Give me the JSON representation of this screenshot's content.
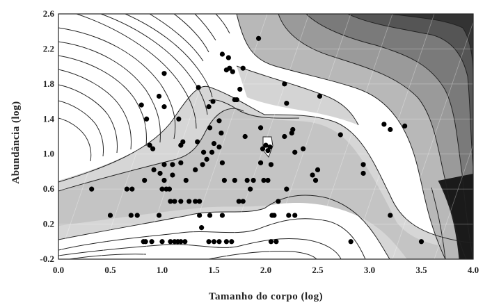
{
  "chart_data": {
    "type": "scatter",
    "title": "",
    "xlabel": "Tamanho do corpo (log)",
    "ylabel": "Abundância (log)",
    "xlim": [
      0.0,
      4.0
    ],
    "ylim": [
      -0.2,
      2.6
    ],
    "x_ticks": [
      "0.0",
      "0.5",
      "1.0",
      "1.5",
      "2.0",
      "2.5",
      "3.0",
      "3.5",
      "4.0"
    ],
    "y_ticks": [
      "-0.2",
      "0.2",
      "0.6",
      "1.0",
      "1.4",
      "1.8",
      "2.2",
      "2.6"
    ],
    "background": "filled contour map of point density (white = low, black = high)",
    "grid": true,
    "points": [
      {
        "x": 0.32,
        "y": 0.6
      },
      {
        "x": 0.5,
        "y": 0.3
      },
      {
        "x": 0.66,
        "y": 0.6
      },
      {
        "x": 0.71,
        "y": 0.6
      },
      {
        "x": 0.7,
        "y": 0.3
      },
      {
        "x": 0.76,
        "y": 0.3
      },
      {
        "x": 0.8,
        "y": 1.56
      },
      {
        "x": 0.85,
        "y": 1.4
      },
      {
        "x": 0.83,
        "y": 0.7
      },
      {
        "x": 0.88,
        "y": 1.1
      },
      {
        "x": 0.91,
        "y": 1.06
      },
      {
        "x": 0.92,
        "y": 0.82
      },
      {
        "x": 0.84,
        "y": 0.0
      },
      {
        "x": 0.9,
        "y": 0.0
      },
      {
        "x": 0.82,
        "y": 0.0
      },
      {
        "x": 0.97,
        "y": 1.66
      },
      {
        "x": 1.02,
        "y": 1.92
      },
      {
        "x": 1.02,
        "y": 1.54
      },
      {
        "x": 0.98,
        "y": 0.78
      },
      {
        "x": 1.02,
        "y": 0.88
      },
      {
        "x": 1.02,
        "y": 0.7
      },
      {
        "x": 1.0,
        "y": 0.6
      },
      {
        "x": 1.04,
        "y": 0.6
      },
      {
        "x": 1.07,
        "y": 0.6
      },
      {
        "x": 1.1,
        "y": 0.88
      },
      {
        "x": 1.1,
        "y": 0.76
      },
      {
        "x": 1.08,
        "y": 0.46
      },
      {
        "x": 1.12,
        "y": 0.46
      },
      {
        "x": 0.97,
        "y": 0.3
      },
      {
        "x": 1.0,
        "y": 0.0
      },
      {
        "x": 1.08,
        "y": 0.0
      },
      {
        "x": 1.12,
        "y": 0.0
      },
      {
        "x": 1.15,
        "y": 0.0
      },
      {
        "x": 1.18,
        "y": 0.0
      },
      {
        "x": 1.22,
        "y": 0.0
      },
      {
        "x": 1.16,
        "y": 1.4
      },
      {
        "x": 1.18,
        "y": 1.1
      },
      {
        "x": 1.2,
        "y": 1.14
      },
      {
        "x": 1.18,
        "y": 0.9
      },
      {
        "x": 1.18,
        "y": 0.46
      },
      {
        "x": 1.23,
        "y": 0.7
      },
      {
        "x": 1.26,
        "y": 0.46
      },
      {
        "x": 1.32,
        "y": 0.82
      },
      {
        "x": 1.35,
        "y": 1.76
      },
      {
        "x": 1.34,
        "y": 1.14
      },
      {
        "x": 1.32,
        "y": 0.46
      },
      {
        "x": 1.36,
        "y": 0.46
      },
      {
        "x": 1.39,
        "y": 0.88
      },
      {
        "x": 1.4,
        "y": 1.02
      },
      {
        "x": 1.43,
        "y": 0.94
      },
      {
        "x": 1.36,
        "y": 0.3
      },
      {
        "x": 1.38,
        "y": 0.16
      },
      {
        "x": 1.45,
        "y": 1.54
      },
      {
        "x": 1.49,
        "y": 1.6
      },
      {
        "x": 1.46,
        "y": 1.3
      },
      {
        "x": 1.5,
        "y": 1.12
      },
      {
        "x": 1.48,
        "y": 1.02
      },
      {
        "x": 1.46,
        "y": 0.3
      },
      {
        "x": 1.45,
        "y": 0.0
      },
      {
        "x": 1.5,
        "y": 0.0
      },
      {
        "x": 1.55,
        "y": 0.0
      },
      {
        "x": 1.58,
        "y": 2.14
      },
      {
        "x": 1.62,
        "y": 1.96
      },
      {
        "x": 1.64,
        "y": 2.1
      },
      {
        "x": 1.65,
        "y": 1.98
      },
      {
        "x": 1.68,
        "y": 1.94
      },
      {
        "x": 1.55,
        "y": 1.38
      },
      {
        "x": 1.57,
        "y": 1.24
      },
      {
        "x": 1.55,
        "y": 1.08
      },
      {
        "x": 1.58,
        "y": 0.9
      },
      {
        "x": 1.6,
        "y": 0.7
      },
      {
        "x": 1.58,
        "y": 0.3
      },
      {
        "x": 1.62,
        "y": 0.0
      },
      {
        "x": 1.67,
        "y": 0.0
      },
      {
        "x": 1.72,
        "y": 1.62
      },
      {
        "x": 1.75,
        "y": 1.74
      },
      {
        "x": 1.78,
        "y": 1.98
      },
      {
        "x": 1.7,
        "y": 1.62
      },
      {
        "x": 1.7,
        "y": 0.7
      },
      {
        "x": 1.74,
        "y": 0.46
      },
      {
        "x": 1.78,
        "y": 0.46
      },
      {
        "x": 1.8,
        "y": 1.2
      },
      {
        "x": 1.82,
        "y": 0.7
      },
      {
        "x": 1.85,
        "y": 0.6
      },
      {
        "x": 1.88,
        "y": 0.7
      },
      {
        "x": 1.93,
        "y": 2.32
      },
      {
        "x": 1.95,
        "y": 1.3
      },
      {
        "x": 1.95,
        "y": 0.9
      },
      {
        "x": 1.97,
        "y": 1.06
      },
      {
        "x": 1.98,
        "y": 0.7
      },
      {
        "x": 2.0,
        "y": 1.1
      },
      {
        "x": 2.02,
        "y": 1.04
      },
      {
        "x": 2.04,
        "y": 1.08
      },
      {
        "x": 2.05,
        "y": 0.88
      },
      {
        "x": 2.02,
        "y": 0.7
      },
      {
        "x": 2.06,
        "y": 0.3
      },
      {
        "x": 2.08,
        "y": 0.3
      },
      {
        "x": 2.05,
        "y": 0.0
      },
      {
        "x": 2.1,
        "y": 0.0
      },
      {
        "x": 2.12,
        "y": 0.46
      },
      {
        "x": 2.18,
        "y": 1.8
      },
      {
        "x": 2.2,
        "y": 1.58
      },
      {
        "x": 2.18,
        "y": 1.2
      },
      {
        "x": 2.2,
        "y": 0.6
      },
      {
        "x": 2.25,
        "y": 1.24
      },
      {
        "x": 2.26,
        "y": 1.28
      },
      {
        "x": 2.28,
        "y": 1.02
      },
      {
        "x": 2.22,
        "y": 0.3
      },
      {
        "x": 2.28,
        "y": 0.3
      },
      {
        "x": 2.36,
        "y": 1.06
      },
      {
        "x": 2.45,
        "y": 0.76
      },
      {
        "x": 2.5,
        "y": 0.82
      },
      {
        "x": 2.52,
        "y": 1.66
      },
      {
        "x": 2.48,
        "y": 0.7
      },
      {
        "x": 2.72,
        "y": 1.22
      },
      {
        "x": 2.82,
        "y": 0.0
      },
      {
        "x": 2.94,
        "y": 0.88
      },
      {
        "x": 2.94,
        "y": 0.78
      },
      {
        "x": 3.14,
        "y": 1.34
      },
      {
        "x": 3.2,
        "y": 0.3
      },
      {
        "x": 3.2,
        "y": 1.28
      },
      {
        "x": 3.34,
        "y": 1.32
      },
      {
        "x": 3.5,
        "y": 0.0
      }
    ]
  }
}
